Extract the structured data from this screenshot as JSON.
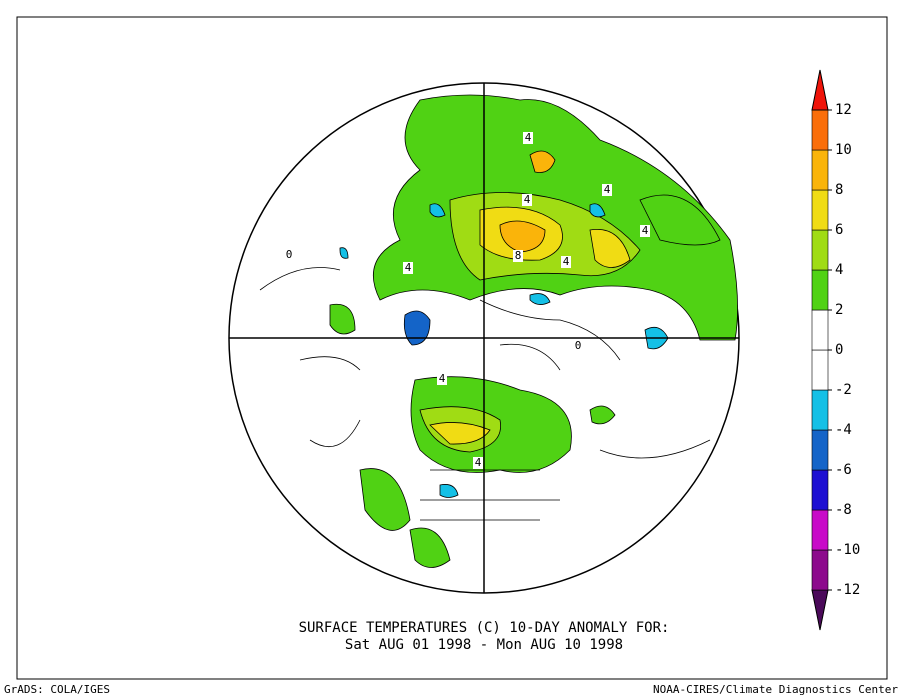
{
  "title": [
    "SURFACE TEMPERATURES (C)   10-DAY ANOMALY FOR:",
    "Sat AUG 01 1998 - Mon AUG 10 1998"
  ],
  "colorbar": {
    "ticks": [
      -12,
      -10,
      -8,
      -6,
      -4,
      -2,
      0,
      2,
      4,
      6,
      8,
      10,
      12
    ],
    "colors": [
      "#4b0a5a",
      "#8c0a8c",
      "#c80ac8",
      "#1e10d2",
      "#1464c8",
      "#14c0e6",
      "#ffffff",
      "#ffffff",
      "#50d214",
      "#a0dc14",
      "#f0dc14",
      "#fab40a",
      "#fa6e0a",
      "#f0140a"
    ]
  },
  "contour_labels": [
    "4",
    "4",
    "4",
    "4",
    "8",
    "4",
    "4",
    "0",
    "0",
    "4",
    "4"
  ],
  "footer": {
    "left": "GrADS: COLA/IGES",
    "right": "NOAA-CIRES/Climate Diagnostics Center"
  }
}
